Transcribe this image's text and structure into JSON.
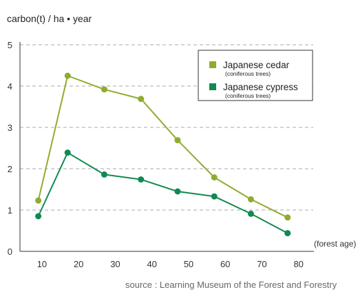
{
  "chart_data": {
    "type": "line",
    "ylabel": "carbon(t) / ha • year",
    "xlabel": "(forest age)",
    "source": "source : Learning Museum of the Forest and Forestry",
    "x": [
      10,
      20,
      30,
      40,
      50,
      60,
      70,
      80
    ],
    "xticks": [
      "10",
      "20",
      "30",
      "40",
      "50",
      "60",
      "70",
      "80"
    ],
    "yticks": [
      "0",
      "1",
      "2",
      "3",
      "4",
      "5"
    ],
    "ylim": [
      0,
      5
    ],
    "grid": "horizontal dashed",
    "legend_position": "top-right",
    "series": [
      {
        "name": "Japanese cedar",
        "note": "(coniferous trees)",
        "color": "#8fac2f",
        "x": [
          9,
          17,
          27,
          37,
          47,
          57,
          67,
          77
        ],
        "values": [
          1.23,
          4.25,
          3.92,
          3.69,
          2.69,
          1.79,
          1.26,
          0.82
        ]
      },
      {
        "name": "Japanese cypress",
        "note": "(coniferous trees)",
        "color": "#0f8a50",
        "x": [
          9,
          17,
          27,
          37,
          47,
          57,
          67,
          77
        ],
        "values": [
          0.85,
          2.39,
          1.86,
          1.74,
          1.45,
          1.33,
          0.91,
          0.44
        ]
      }
    ]
  }
}
